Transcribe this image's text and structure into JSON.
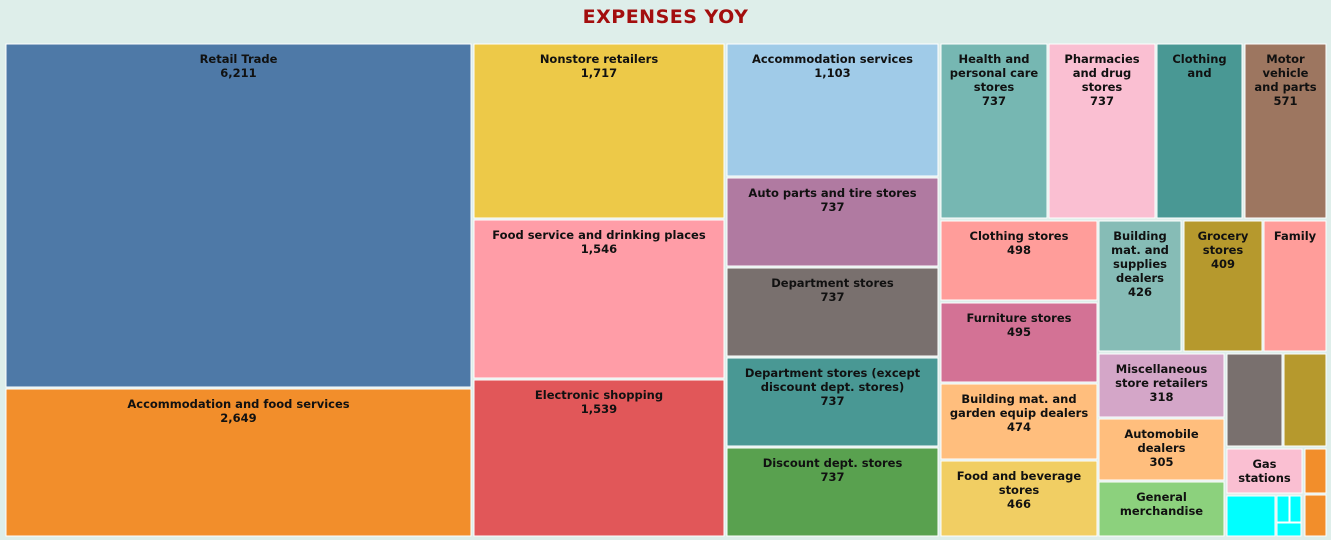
{
  "title": "EXPENSES YOY",
  "colors": {
    "title": "#a30e0e",
    "background": "#deeeea",
    "tile_border": "#ffffff"
  },
  "chart_data": {
    "type": "treemap",
    "title": "EXPENSES YOY",
    "nodes": [
      {
        "label": "Retail Trade",
        "value": 6211,
        "value_label": "6,211",
        "color": "#4e79a7"
      },
      {
        "label": "Accommodation and food services",
        "value": 2649,
        "value_label": "2,649",
        "color": "#f28e2b"
      },
      {
        "label": "Nonstore retailers",
        "value": 1717,
        "value_label": "1,717",
        "color": "#edc948"
      },
      {
        "label": "Food service and drinking places",
        "value": 1546,
        "value_label": "1,546",
        "color": "#ff9da7"
      },
      {
        "label": "Electronic shopping",
        "value": 1539,
        "value_label": "1,539",
        "color": "#e15759"
      },
      {
        "label": "Accommodation services",
        "value": 1103,
        "value_label": "1,103",
        "color": "#a0cbe8"
      },
      {
        "label": "Auto parts and tire stores",
        "value": 737,
        "value_label": "737",
        "color": "#b07aa1"
      },
      {
        "label": "Department stores",
        "value": 737,
        "value_label": "737",
        "color": "#79706e"
      },
      {
        "label": "Department stores (except discount dept. stores)",
        "value": 737,
        "value_label": "737",
        "color": "#499894"
      },
      {
        "label": "Discount dept. stores",
        "value": 737,
        "value_label": "737",
        "color": "#59a14f"
      },
      {
        "label": "Health and personal care stores",
        "value": 737,
        "value_label": "737",
        "color": "#76b7b2"
      },
      {
        "label": "Pharmacies and drug stores",
        "value": 737,
        "value_label": "737",
        "color": "#fabfd2"
      },
      {
        "label": "Clothing and",
        "value": null,
        "value_label": "",
        "color": "#499894"
      },
      {
        "label": "Motor vehicle and parts",
        "value": 571,
        "value_label": "571",
        "color": "#9d7660"
      },
      {
        "label": "Clothing stores",
        "value": 498,
        "value_label": "498",
        "color": "#ff9d9a"
      },
      {
        "label": "Furniture stores",
        "value": 495,
        "value_label": "495",
        "color": "#d37295"
      },
      {
        "label": "Building mat. and garden equip dealers",
        "value": 474,
        "value_label": "474",
        "color": "#ffbe7d"
      },
      {
        "label": "Food and beverage stores",
        "value": 466,
        "value_label": "466",
        "color": "#f1ce63"
      },
      {
        "label": "Building mat. and supplies dealers",
        "value": 426,
        "value_label": "426",
        "color": "#86bcb6"
      },
      {
        "label": "Grocery stores",
        "value": 409,
        "value_label": "409",
        "color": "#b6992d"
      },
      {
        "label": "Family",
        "value": null,
        "value_label": "",
        "color": "#ff9d9a"
      },
      {
        "label": "Miscellaneous store retailers",
        "value": 318,
        "value_label": "318",
        "color": "#d4a6c8"
      },
      {
        "label": "Automobile dealers",
        "value": 305,
        "value_label": "305",
        "color": "#ffbe7d"
      },
      {
        "label": "General merchandise",
        "value": null,
        "value_label": "",
        "color": "#8cd17d"
      },
      {
        "label": "Gas stations",
        "value": null,
        "value_label": "",
        "color": "#fabfd2"
      },
      {
        "label": "",
        "value": null,
        "value_label": "",
        "color": "#79706e"
      },
      {
        "label": "",
        "value": null,
        "value_label": "",
        "color": "#b6992d"
      },
      {
        "label": "",
        "value": null,
        "value_label": "",
        "color": "#f28e2b"
      },
      {
        "label": "",
        "value": null,
        "value_label": "",
        "color": "#f28e2b"
      },
      {
        "label": "",
        "value": null,
        "value_label": "",
        "color": "#00ffff"
      },
      {
        "label": "",
        "value": null,
        "value_label": "",
        "color": "#00ffff"
      },
      {
        "label": "",
        "value": null,
        "value_label": "",
        "color": "#00ffff"
      },
      {
        "label": "",
        "value": null,
        "value_label": "",
        "color": "#00ffff"
      }
    ]
  }
}
